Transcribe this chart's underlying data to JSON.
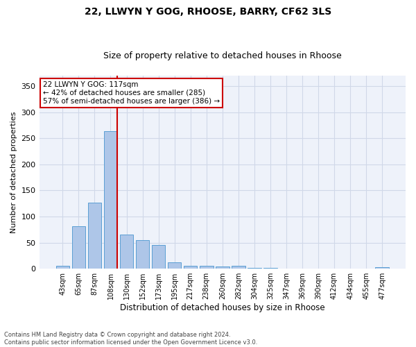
{
  "title1": "22, LLWYN Y GOG, RHOOSE, BARRY, CF62 3LS",
  "title2": "Size of property relative to detached houses in Rhoose",
  "xlabel": "Distribution of detached houses by size in Rhoose",
  "ylabel": "Number of detached properties",
  "footnote": "Contains HM Land Registry data © Crown copyright and database right 2024.\nContains public sector information licensed under the Open Government Licence v3.0.",
  "categories": [
    "43sqm",
    "65sqm",
    "87sqm",
    "108sqm",
    "130sqm",
    "152sqm",
    "173sqm",
    "195sqm",
    "217sqm",
    "238sqm",
    "260sqm",
    "282sqm",
    "304sqm",
    "325sqm",
    "347sqm",
    "369sqm",
    "390sqm",
    "412sqm",
    "434sqm",
    "455sqm",
    "477sqm"
  ],
  "values": [
    5,
    82,
    127,
    263,
    65,
    55,
    45,
    12,
    6,
    5,
    4,
    5,
    1,
    1,
    0,
    0,
    0,
    0,
    0,
    0,
    3
  ],
  "bar_color": "#aec6e8",
  "bar_edge_color": "#5a9fd4",
  "vline_color": "#cc0000",
  "annotation_text": "22 LLWYN Y GOG: 117sqm\n← 42% of detached houses are smaller (285)\n57% of semi-detached houses are larger (386) →",
  "annotation_box_color": "white",
  "annotation_box_edge_color": "#cc0000",
  "annotation_fontsize": 7.5,
  "ylim": [
    0,
    370
  ],
  "yticks": [
    0,
    50,
    100,
    150,
    200,
    250,
    300,
    350
  ],
  "grid_color": "#d0d8e8",
  "background_color": "#eef2fa",
  "title1_fontsize": 10,
  "title2_fontsize": 9,
  "xlabel_fontsize": 8.5,
  "ylabel_fontsize": 8
}
